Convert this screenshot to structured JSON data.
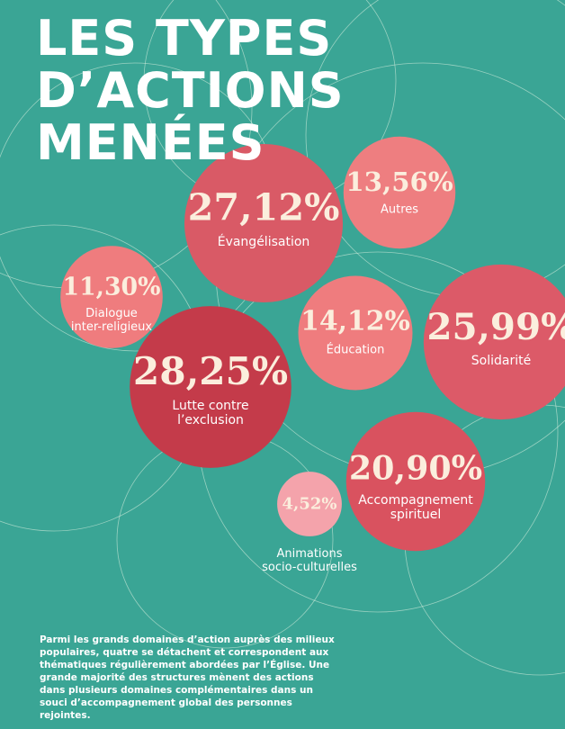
{
  "chart_data": {
    "type": "bubble",
    "title": [
      "LES TYPES",
      "D’ACTIONS",
      "MENÉES"
    ],
    "categories": [
      "Évangélisation",
      "Autres",
      "Dialogue\ninter-religieux",
      "Éducation",
      "Solidarité",
      "Lutte contre\nl’exclusion",
      "Accompagnement\nspirituel",
      "Animations\nsocio-culturelles"
    ],
    "values": [
      27.12,
      13.56,
      11.3,
      14.12,
      25.99,
      28.25,
      20.9,
      4.52
    ],
    "value_labels": [
      "27,12%",
      "13,56%",
      "11,30%",
      "14,12%",
      "25,99%",
      "28,25%",
      "20,90%",
      "4,52%"
    ],
    "colors": [
      "#d95a66",
      "#ee7e80",
      "#ef7c7e",
      "#ef7c7e",
      "#dc5a68",
      "#c43b4a",
      "#d9525f",
      "#f4a3ab"
    ]
  },
  "caption": "Parmi les grands domaines d’action auprès des milieux populaires, quatre se détachent et correspondent aux thématiques régulièrement abordées par l’Église. Une grande majorité des structures mènent des actions dans plusieurs domaines complémentaires dans un souci d’accompagnement global des personnes rejointes."
}
